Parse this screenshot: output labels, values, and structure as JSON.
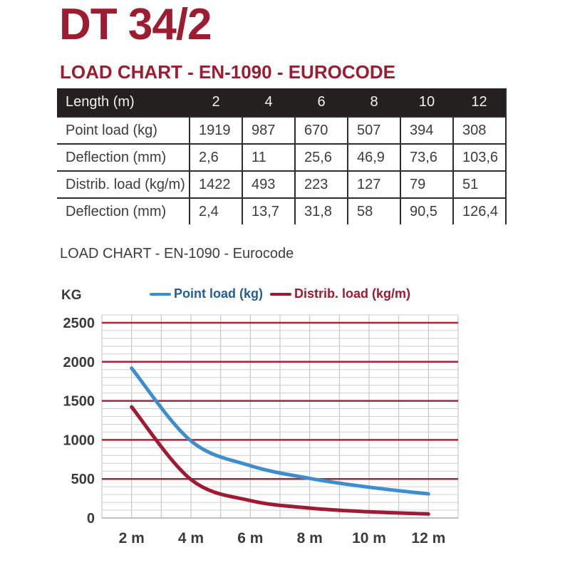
{
  "page": {
    "title": "DT 34/2",
    "section_heading": "LOAD CHART - EN-1090 - EUROCODE",
    "sub_heading": "LOAD CHART - EN-1090 - Eurocode"
  },
  "colors": {
    "maroon": "#9C1C30",
    "table_header_bg": "#242020",
    "table_header_text": "#F2F0EE",
    "table_text": "#3C3C3C",
    "table_border": "#2E2E2E",
    "grid_major": "#A92339",
    "grid_minor": "#CFCFCF",
    "grid_vertical": "#BDBDBD",
    "axis_zero_line": "#9A9A9A",
    "axis_label": "#3B3B3B",
    "point_load_line": "#3E8ECD",
    "distrib_load_line": "#9E1B33"
  },
  "table": {
    "header": [
      "Length (m)",
      "2",
      "4",
      "6",
      "8",
      "10",
      "12"
    ],
    "rows": [
      {
        "label": "Point load (kg)",
        "values": [
          "1919",
          "987",
          "670",
          "507",
          "394",
          "308"
        ]
      },
      {
        "label": "Deflection (mm)",
        "values": [
          "2,6",
          "11",
          "25,6",
          "46,9",
          "73,6",
          "103,6"
        ]
      },
      {
        "label": "Distrib. load (kg/m)",
        "values": [
          "1422",
          "493",
          "223",
          "127",
          "79",
          "51"
        ]
      },
      {
        "label": "Deflection (mm)",
        "values": [
          "2,4",
          "13,7",
          "31,8",
          "58",
          "90,5",
          "126,4"
        ]
      }
    ]
  },
  "chart_data": {
    "type": "line",
    "title": "",
    "y_axis_unit": "KG",
    "x": [
      2,
      4,
      6,
      8,
      10,
      12
    ],
    "x_tick_labels": [
      "2 m",
      "4 m",
      "6 m",
      "8 m",
      "10 m",
      "12 m"
    ],
    "series": [
      {
        "name": "Point load (kg)",
        "color": "#3E8ECD",
        "text_color": "#265E93",
        "values": [
          1919,
          987,
          670,
          507,
          394,
          308
        ]
      },
      {
        "name": "Distrib. load (kg/m)",
        "color": "#9E1B33",
        "text_color": "#9B1B30",
        "values": [
          1422,
          493,
          223,
          127,
          79,
          51
        ]
      }
    ],
    "xlim": [
      1,
      13
    ],
    "ylim": [
      0,
      2600
    ],
    "y_major_step": 500,
    "y_minor_step": 100,
    "y_tick_labels": [
      "0",
      "500",
      "1000",
      "1500",
      "2000",
      "2500"
    ],
    "grid": true,
    "legend_position": "top"
  }
}
